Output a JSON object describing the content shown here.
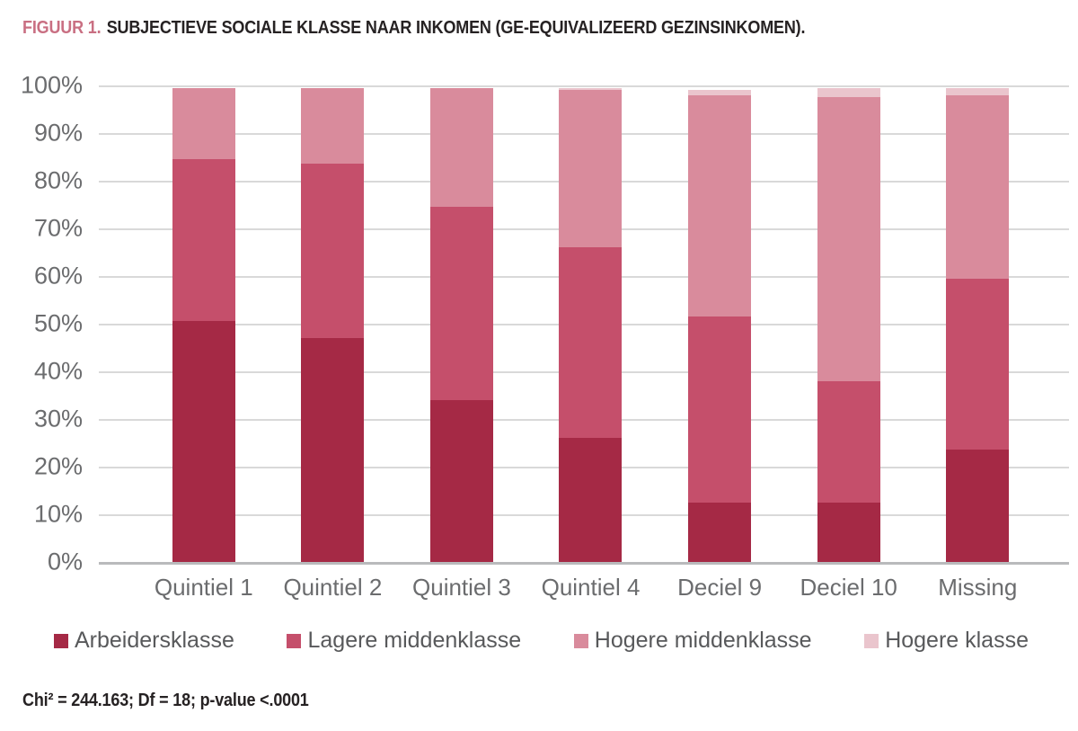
{
  "title": {
    "prefix": "FIGUUR 1.",
    "text": "SUBJECTIEVE SOCIALE KLASSE NAAR INKOMEN (GE-EQUIVALIZEERD GEZINSINKOMEN)."
  },
  "footnote": "Chi² = 244.163; Df = 18; p-value <.0001",
  "colors": {
    "title_accent": "#c96f82",
    "title_text": "#262223",
    "axis_label": "#6b6c6e",
    "legend_label": "#58595b",
    "gridline": "#d9d9d9",
    "axis_line": "#b9babc"
  },
  "chart_data": {
    "type": "bar",
    "stacked": true,
    "percent": true,
    "grid": true,
    "legend_position": "bottom",
    "categories": [
      "Quintiel 1",
      "Quintiel 2",
      "Quintiel 3",
      "Quintiel 4",
      "Deciel 9",
      "Deciel 10",
      "Missing"
    ],
    "series": [
      {
        "name": "Arbeidersklasse",
        "color": "#a52945",
        "values": [
          50.5,
          47.0,
          34.0,
          26.0,
          12.5,
          12.5,
          23.5
        ]
      },
      {
        "name": "Lagere middenklasse",
        "color": "#c54f6b",
        "values": [
          34.0,
          36.5,
          40.5,
          40.0,
          39.0,
          25.5,
          36.0
        ]
      },
      {
        "name": "Hogere middenklasse",
        "color": "#d98b9c",
        "values": [
          15.0,
          16.0,
          25.0,
          33.0,
          46.5,
          59.5,
          38.5
        ]
      },
      {
        "name": "Hogere klasse",
        "color": "#eac5cd",
        "values": [
          0.0,
          0.0,
          0.0,
          0.5,
          1.0,
          2.0,
          1.5
        ]
      }
    ],
    "y_axis": {
      "min": 0,
      "max": 100,
      "step": 10,
      "tick_labels": [
        "0%",
        "10%",
        "20%",
        "30%",
        "40%",
        "50%",
        "60%",
        "70%",
        "80%",
        "90%",
        "100%"
      ]
    }
  }
}
